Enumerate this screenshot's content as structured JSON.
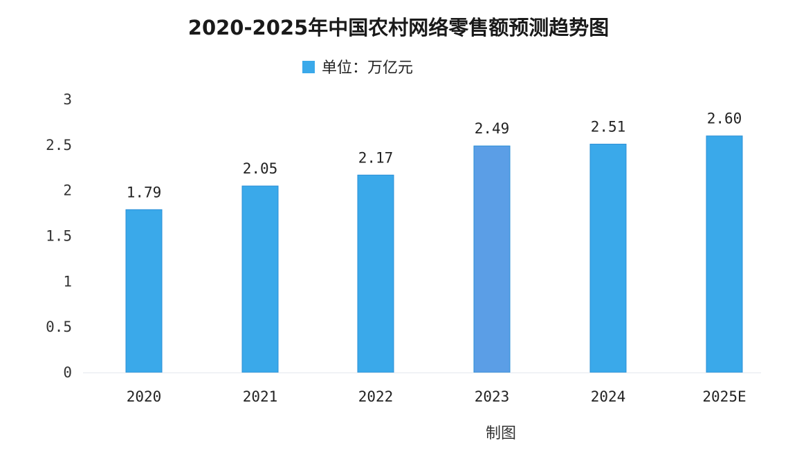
{
  "chart_data": {
    "type": "bar",
    "title": "2020-2025年中国农村网络零售额预测趋势图",
    "legend": {
      "label": "单位：万亿元",
      "placement": "top-center"
    },
    "categories": [
      "2020",
      "2021",
      "2022",
      "2023",
      "2024",
      "2025E"
    ],
    "values": [
      1.79,
      2.05,
      2.17,
      2.49,
      2.51,
      2.6
    ],
    "data_labels": [
      "1.79",
      "2.05",
      "2.17",
      "2.49",
      "2.51",
      "2.60"
    ],
    "y_ticks": [
      "0",
      "0.5",
      "1",
      "1.5",
      "2",
      "2.5",
      "3"
    ],
    "ylim": [
      0,
      3
    ],
    "grid": false,
    "colors": {
      "bar": "#3aa9ea",
      "bar_highlight": "#5b9ee6",
      "bar_edge": "#2b8fd6"
    }
  },
  "footer_text": "制图"
}
